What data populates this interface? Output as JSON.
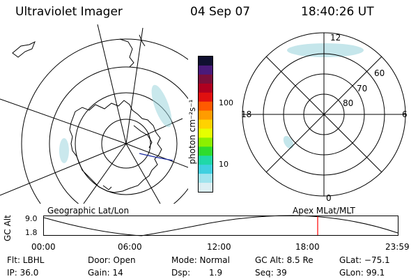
{
  "header": {
    "instrument": "Ultraviolet Imager",
    "date": "04 Sep 07",
    "time": "18:40:26 UT"
  },
  "left_map": {
    "title": "Geographic Lat/Lon"
  },
  "colorbar": {
    "unit_label": "photon cm⁻²s⁻¹",
    "ticks": [
      "100",
      "10"
    ],
    "colors": [
      "#101030",
      "#4a1a7a",
      "#7a0f3a",
      "#b00020",
      "#e01010",
      "#ff5a00",
      "#ff9c00",
      "#ffd200",
      "#e6ff00",
      "#8cf000",
      "#2edc2e",
      "#20d8a8",
      "#40d0e0",
      "#a0e4ee",
      "#dceff4"
    ]
  },
  "right_map": {
    "title": "Apex MLat/MLT",
    "mlt_labels": {
      "top": "12",
      "right": "6",
      "bottom": "0",
      "left": "18"
    },
    "lat_labels": [
      "60",
      "70",
      "80"
    ]
  },
  "altitude_plot": {
    "axis_label": "GC Alt",
    "y_ticks": [
      "9.0",
      "1.8"
    ],
    "x_ticks": [
      "00:00",
      "06:00",
      "12:00",
      "18:00",
      "23:59"
    ],
    "marker_color": "#ff0000"
  },
  "status": {
    "filter": "Flt: LBHL",
    "door": "Door: Open",
    "mode": "Mode: Normal",
    "gc_alt": "GC Alt: 8.5 Re",
    "glat": "GLat: −75.1",
    "ip": "IP: 36.0",
    "gain": "Gain: 14",
    "dsp_label": "Dsp:",
    "dsp_value": "1.9",
    "seq": "Seq: 39",
    "glon": "GLon:  99.1"
  }
}
